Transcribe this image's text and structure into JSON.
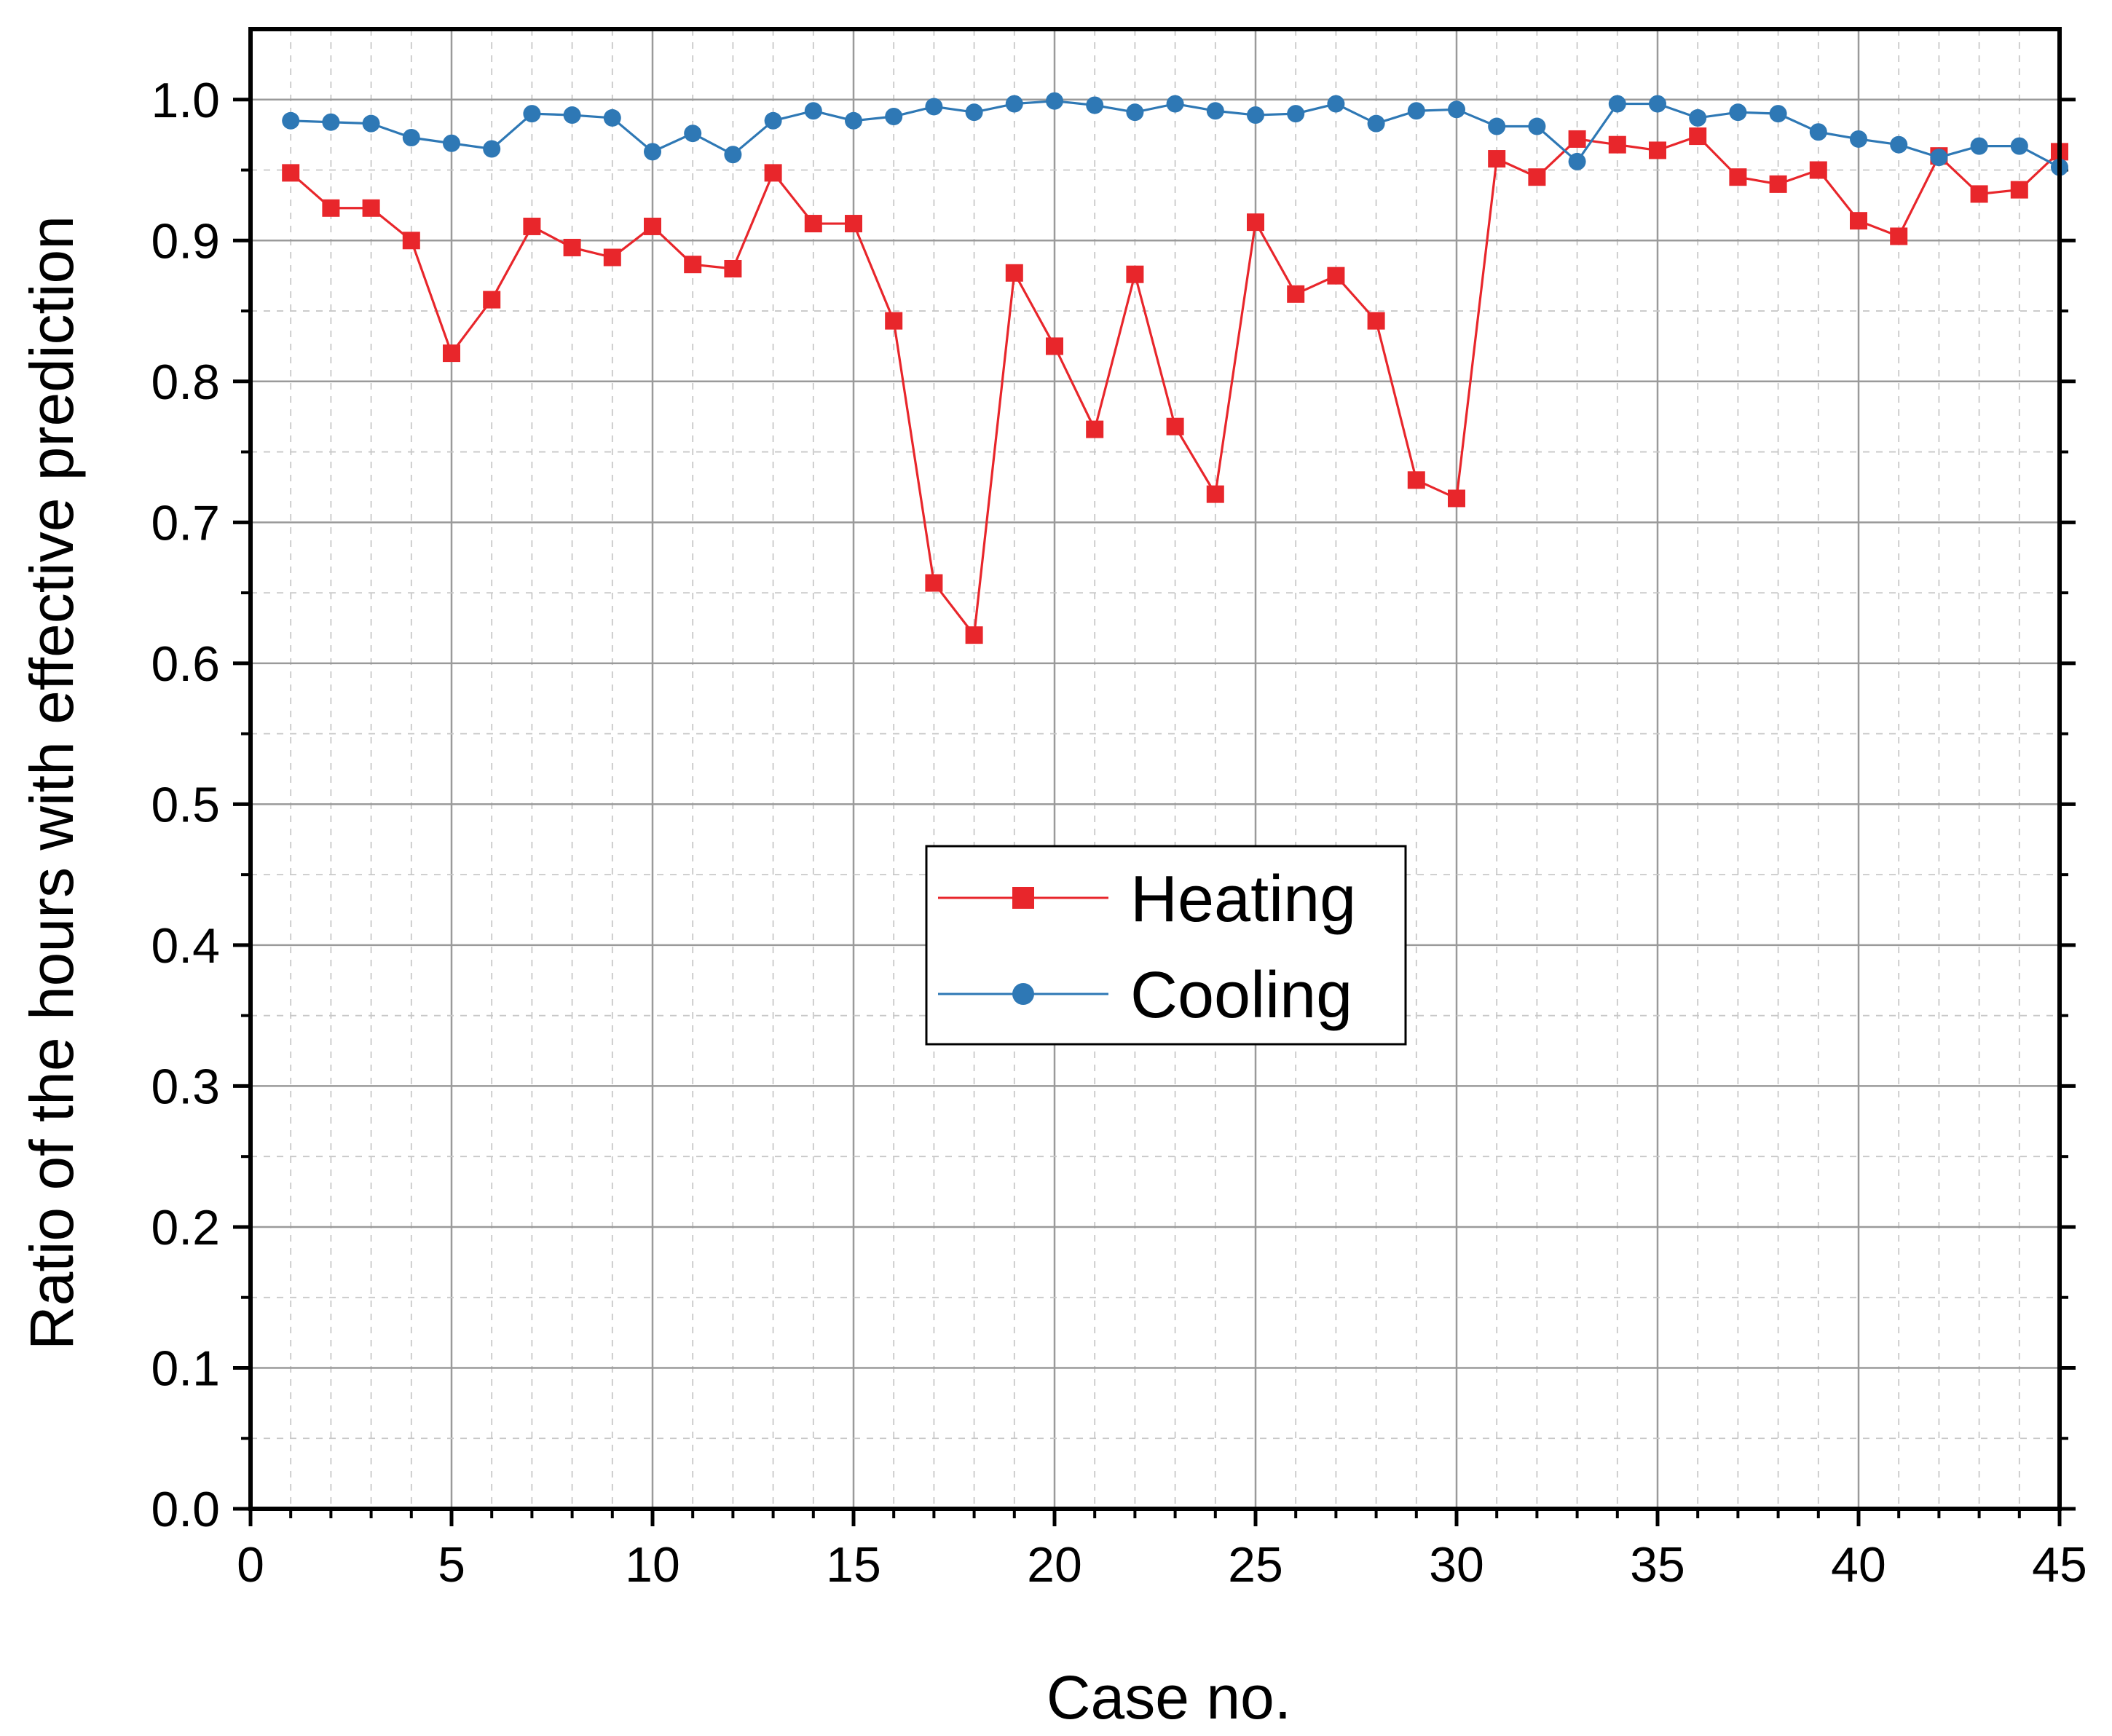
{
  "chart_data": {
    "type": "line",
    "title": "",
    "xlabel": "Case no.",
    "ylabel": "Ratio of the hours with effective prediction",
    "xlim": [
      0,
      45
    ],
    "ylim": [
      0.0,
      1.05
    ],
    "xticks": [
      0,
      5,
      10,
      15,
      20,
      25,
      30,
      35,
      40,
      45
    ],
    "xtick_labels": [
      "0",
      "5",
      "10",
      "15",
      "20",
      "25",
      "30",
      "35",
      "40",
      "45"
    ],
    "yticks": [
      0.0,
      0.1,
      0.2,
      0.3,
      0.4,
      0.5,
      0.6,
      0.7,
      0.8,
      0.9,
      1.0
    ],
    "ytick_labels": [
      "0.0",
      "0.1",
      "0.2",
      "0.3",
      "0.4",
      "0.5",
      "0.6",
      "0.7",
      "0.8",
      "0.9",
      "1.0"
    ],
    "grid": true,
    "legend_position": "center",
    "x": [
      1,
      2,
      3,
      4,
      5,
      6,
      7,
      8,
      9,
      10,
      11,
      12,
      13,
      14,
      15,
      16,
      17,
      18,
      19,
      20,
      21,
      22,
      23,
      24,
      25,
      26,
      27,
      28,
      29,
      30,
      31,
      32,
      33,
      34,
      35,
      36,
      37,
      38,
      39,
      40,
      41,
      42,
      43,
      44,
      45
    ],
    "series": [
      {
        "name": "Heating",
        "color": "#e8262b",
        "marker": "square",
        "values": [
          0.948,
          0.923,
          0.923,
          0.9,
          0.82,
          0.858,
          0.91,
          0.895,
          0.888,
          0.91,
          0.883,
          0.88,
          0.948,
          0.912,
          0.912,
          0.843,
          0.657,
          0.62,
          0.877,
          0.825,
          0.766,
          0.876,
          0.768,
          0.72,
          0.913,
          0.862,
          0.875,
          0.843,
          0.73,
          0.717,
          0.958,
          0.945,
          0.972,
          0.968,
          0.964,
          0.974,
          0.945,
          0.94,
          0.95,
          0.914,
          0.903,
          0.96,
          0.933,
          0.936,
          0.963
        ]
      },
      {
        "name": "Cooling",
        "color": "#2e78b5",
        "marker": "circle",
        "values": [
          0.985,
          0.984,
          0.983,
          0.973,
          0.969,
          0.965,
          0.99,
          0.989,
          0.987,
          0.963,
          0.976,
          0.961,
          0.985,
          0.992,
          0.985,
          0.988,
          0.995,
          0.991,
          0.997,
          0.999,
          0.996,
          0.991,
          0.997,
          0.992,
          0.989,
          0.99,
          0.997,
          0.983,
          0.992,
          0.993,
          0.981,
          0.981,
          0.956,
          0.997,
          0.997,
          0.987,
          0.991,
          0.99,
          0.977,
          0.972,
          0.968,
          0.959,
          0.967,
          0.967,
          0.952
        ]
      }
    ]
  }
}
